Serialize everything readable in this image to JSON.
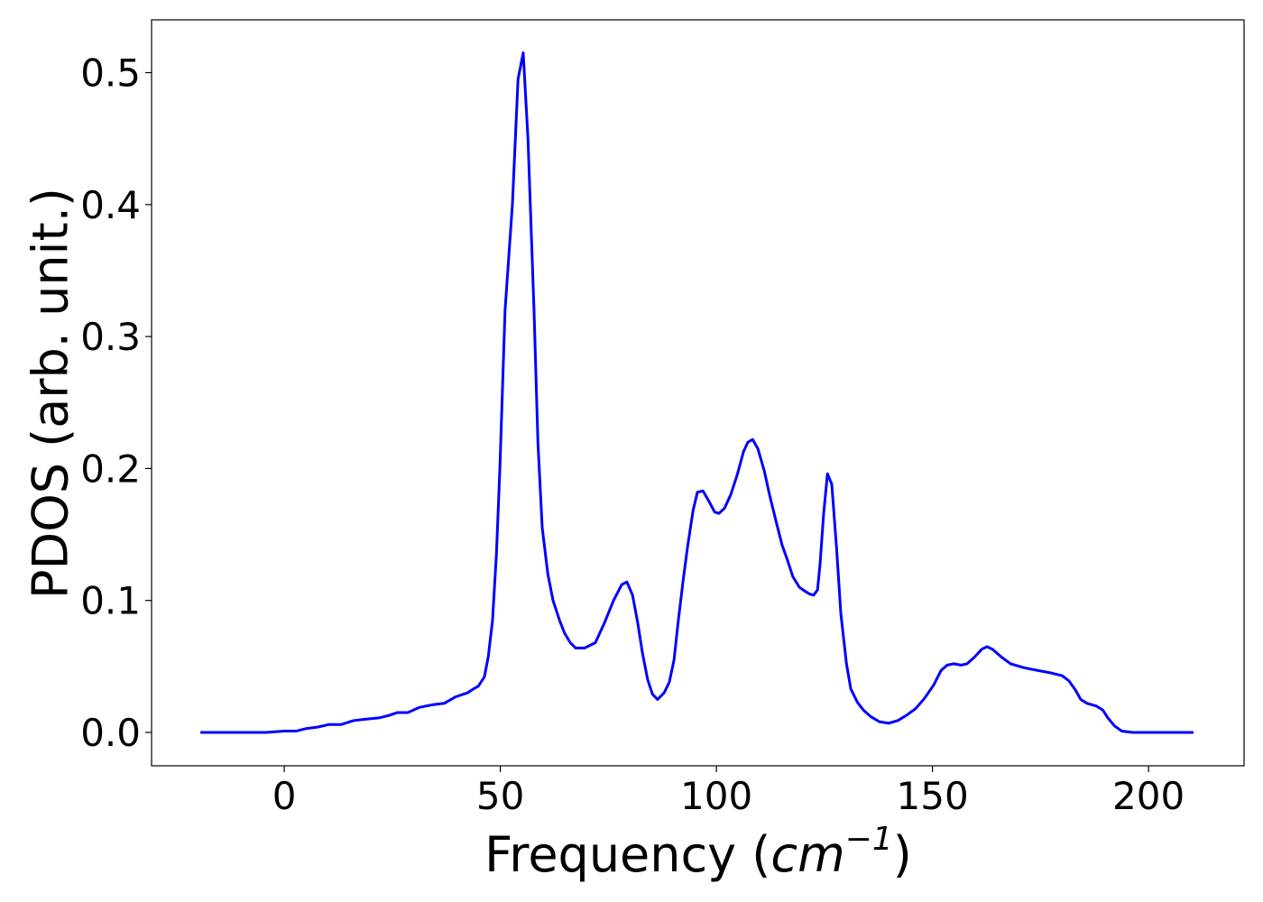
{
  "chart_data": {
    "type": "line",
    "xlabel": [
      "Frequency (",
      "cm",
      "−1",
      ")"
    ],
    "ylabel": "PDOS (arb. unit.)",
    "xlim": [
      -30.7,
      222.1
    ],
    "ylim": [
      -0.0253,
      0.54
    ],
    "xticks": [
      0,
      50,
      100,
      150,
      200
    ],
    "yticks": [
      {
        "value": 0,
        "label": "0.0"
      },
      0.1,
      0.2,
      0.3,
      0.4,
      0.5
    ],
    "series": [
      {
        "color": "#0000ff",
        "x": [
          -19.4,
          -4.2,
          0,
          2.7,
          5.2,
          7.7,
          10.4,
          13.2,
          16.1,
          18.8,
          21.9,
          24.4,
          26.1,
          28.6,
          31.3,
          34.4,
          37,
          39.7,
          42.4,
          43.8,
          44.9,
          46.3,
          47.2,
          48.2,
          49.1,
          49.9,
          51.1,
          52.8,
          54.1,
          55.3,
          56.4,
          57.8,
          58.7,
          59.7,
          61,
          62.2,
          63.7,
          64.9,
          66.2,
          67.4,
          69.5,
          72,
          74.1,
          76.2,
          78.1,
          79.3,
          80.6,
          81.8,
          82.9,
          84.1,
          85.2,
          86.4,
          87.9,
          89.1,
          90.2,
          91.2,
          92.3,
          93.3,
          94.6,
          95.6,
          96.9,
          98.3,
          99.6,
          100.6,
          101.9,
          103.3,
          104.8,
          106.3,
          107.3,
          108.4,
          109.6,
          111.1,
          112.3,
          113.8,
          115.2,
          116.5,
          117.7,
          119.2,
          120.5,
          121.5,
          122.5,
          123.4,
          124,
          124.8,
          125.7,
          126.7,
          127.8,
          128.8,
          130.1,
          131.1,
          132.6,
          134,
          135.7,
          137.8,
          139.9,
          142,
          144,
          146.1,
          148.2,
          150.3,
          152,
          153.4,
          154.9,
          156.6,
          158,
          159.7,
          161.4,
          162.6,
          163.9,
          166,
          168.1,
          171.2,
          174.3,
          177.5,
          180,
          181.6,
          183.1,
          184.3,
          185.8,
          187.9,
          189.4,
          190.6,
          192.1,
          193.8,
          196.3,
          210.4
        ],
        "values": [
          0,
          0,
          0.001,
          0.001,
          0.003,
          0.004,
          0.006,
          0.006,
          0.009,
          0.01,
          0.011,
          0.013,
          0.015,
          0.015,
          0.019,
          0.021,
          0.022,
          0.027,
          0.03,
          0.033,
          0.035,
          0.042,
          0.057,
          0.085,
          0.135,
          0.2,
          0.32,
          0.4,
          0.495,
          0.515,
          0.45,
          0.32,
          0.22,
          0.155,
          0.12,
          0.1,
          0.085,
          0.075,
          0.068,
          0.064,
          0.064,
          0.068,
          0.083,
          0.1,
          0.112,
          0.114,
          0.104,
          0.083,
          0.06,
          0.04,
          0.029,
          0.025,
          0.03,
          0.038,
          0.055,
          0.085,
          0.115,
          0.14,
          0.168,
          0.182,
          0.183,
          0.175,
          0.167,
          0.166,
          0.17,
          0.18,
          0.195,
          0.213,
          0.22,
          0.222,
          0.215,
          0.198,
          0.18,
          0.16,
          0.142,
          0.13,
          0.118,
          0.11,
          0.107,
          0.105,
          0.104,
          0.108,
          0.128,
          0.165,
          0.196,
          0.188,
          0.14,
          0.09,
          0.052,
          0.033,
          0.023,
          0.017,
          0.012,
          0.008,
          0.007,
          0.009,
          0.013,
          0.018,
          0.026,
          0.036,
          0.047,
          0.051,
          0.052,
          0.051,
          0.052,
          0.057,
          0.063,
          0.065,
          0.063,
          0.057,
          0.052,
          0.049,
          0.047,
          0.045,
          0.043,
          0.039,
          0.032,
          0.025,
          0.022,
          0.02,
          0.017,
          0.011,
          0.005,
          0.001,
          0,
          0
        ]
      }
    ]
  }
}
